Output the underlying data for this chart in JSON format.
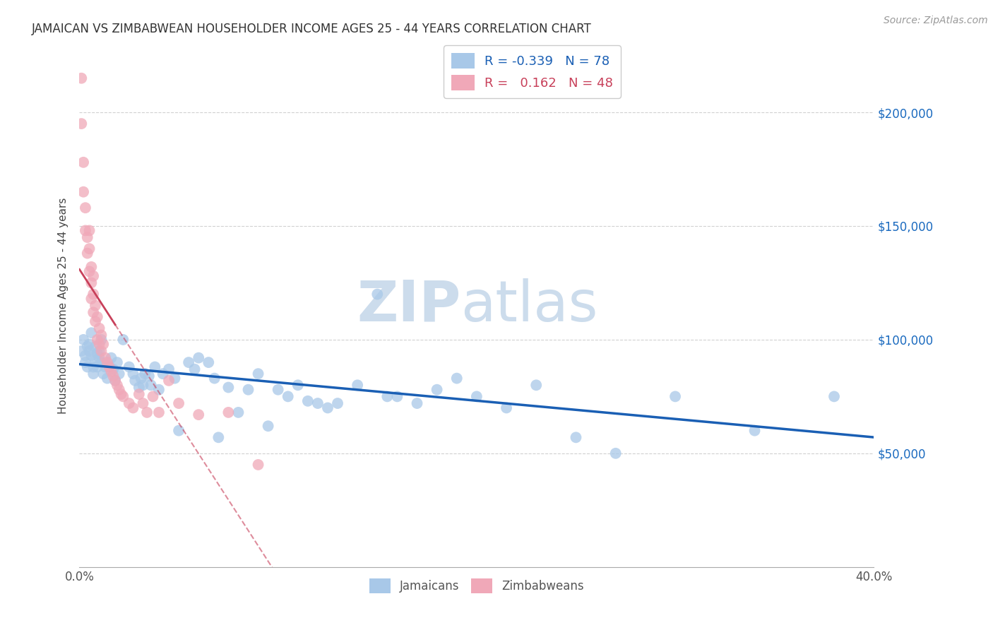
{
  "title": "JAMAICAN VS ZIMBABWEAN HOUSEHOLDER INCOME AGES 25 - 44 YEARS CORRELATION CHART",
  "source_text": "Source: ZipAtlas.com",
  "ylabel": "Householder Income Ages 25 - 44 years",
  "xlim": [
    0.0,
    0.4
  ],
  "ylim": [
    0,
    230000
  ],
  "yticks": [
    50000,
    100000,
    150000,
    200000
  ],
  "ytick_labels": [
    "$50,000",
    "$100,000",
    "$150,000",
    "$200,000"
  ],
  "xticks": [
    0.0,
    0.05,
    0.1,
    0.15,
    0.2,
    0.25,
    0.3,
    0.35,
    0.4
  ],
  "xtick_labels": [
    "0.0%",
    "",
    "",
    "",
    "",
    "",
    "",
    "",
    "40.0%"
  ],
  "legend_blue_label": "R = -0.339   N = 78",
  "legend_pink_label": "R =   0.162   N = 48",
  "jamaicans_color": "#a8c8e8",
  "zimbabweans_color": "#f0a8b8",
  "trend_blue_color": "#1a5fb4",
  "trend_pink_color": "#c8405a",
  "watermark_zip": "ZIP",
  "watermark_atlas": "atlas",
  "watermark_color": "#ccdcec",
  "jamaicans_x": [
    0.001,
    0.002,
    0.003,
    0.003,
    0.004,
    0.004,
    0.005,
    0.005,
    0.006,
    0.006,
    0.007,
    0.007,
    0.008,
    0.008,
    0.009,
    0.009,
    0.01,
    0.01,
    0.011,
    0.011,
    0.012,
    0.013,
    0.014,
    0.015,
    0.016,
    0.017,
    0.018,
    0.019,
    0.02,
    0.022,
    0.025,
    0.027,
    0.028,
    0.03,
    0.031,
    0.032,
    0.033,
    0.035,
    0.036,
    0.038,
    0.04,
    0.042,
    0.045,
    0.048,
    0.05,
    0.055,
    0.058,
    0.06,
    0.065,
    0.068,
    0.07,
    0.075,
    0.08,
    0.085,
    0.09,
    0.095,
    0.1,
    0.105,
    0.11,
    0.115,
    0.12,
    0.125,
    0.13,
    0.14,
    0.15,
    0.155,
    0.16,
    0.17,
    0.18,
    0.19,
    0.2,
    0.215,
    0.23,
    0.25,
    0.27,
    0.3,
    0.34,
    0.38
  ],
  "jamaicans_y": [
    95000,
    100000,
    93000,
    90000,
    97000,
    88000,
    95000,
    98000,
    103000,
    93000,
    88000,
    85000,
    97000,
    91000,
    94000,
    88000,
    92000,
    95000,
    100000,
    90000,
    85000,
    88000,
    83000,
    88000,
    92000,
    87000,
    82000,
    90000,
    85000,
    100000,
    88000,
    85000,
    82000,
    79000,
    83000,
    80000,
    85000,
    84000,
    80000,
    88000,
    78000,
    85000,
    87000,
    83000,
    60000,
    90000,
    87000,
    92000,
    90000,
    83000,
    57000,
    79000,
    68000,
    78000,
    85000,
    62000,
    78000,
    75000,
    80000,
    73000,
    72000,
    70000,
    72000,
    80000,
    120000,
    75000,
    75000,
    72000,
    78000,
    83000,
    75000,
    70000,
    80000,
    57000,
    50000,
    75000,
    60000,
    75000
  ],
  "zimbabweans_x": [
    0.001,
    0.001,
    0.002,
    0.002,
    0.003,
    0.003,
    0.004,
    0.004,
    0.005,
    0.005,
    0.005,
    0.006,
    0.006,
    0.006,
    0.007,
    0.007,
    0.007,
    0.008,
    0.008,
    0.009,
    0.009,
    0.01,
    0.01,
    0.011,
    0.011,
    0.012,
    0.013,
    0.014,
    0.015,
    0.016,
    0.017,
    0.018,
    0.019,
    0.02,
    0.021,
    0.022,
    0.025,
    0.027,
    0.03,
    0.032,
    0.034,
    0.037,
    0.04,
    0.045,
    0.05,
    0.06,
    0.075,
    0.09
  ],
  "zimbabweans_y": [
    215000,
    195000,
    178000,
    165000,
    158000,
    148000,
    145000,
    138000,
    148000,
    140000,
    130000,
    132000,
    125000,
    118000,
    128000,
    120000,
    112000,
    115000,
    108000,
    110000,
    100000,
    105000,
    98000,
    102000,
    95000,
    98000,
    92000,
    90000,
    88000,
    86000,
    84000,
    82000,
    80000,
    78000,
    76000,
    75000,
    72000,
    70000,
    76000,
    72000,
    68000,
    75000,
    68000,
    82000,
    72000,
    67000,
    68000,
    45000
  ],
  "zim_trend_x_start": 0.0,
  "zim_trend_x_solid_end": 0.018,
  "zim_trend_x_dash_end": 0.4,
  "blue_trend_x_start": 0.0,
  "blue_trend_x_end": 0.4
}
